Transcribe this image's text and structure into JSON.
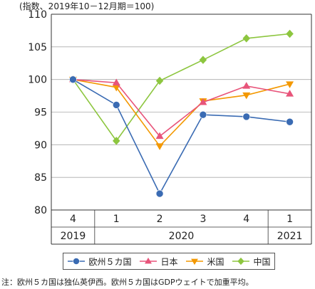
{
  "unit_note": "(指数、2019年10－12月期＝100)",
  "footnote": "注：欧州５カ国は独仏英伊西。欧州５カ国はGDPウェイトで加重平均。",
  "colors": {
    "europe": "#3a6bb3",
    "japan": "#e8547a",
    "usa": "#f39800",
    "china": "#8dc63f",
    "grid": "#aaaaaa",
    "axis": "#333333"
  },
  "chart_data": {
    "type": "line",
    "x": [
      "4",
      "1",
      "2",
      "3",
      "4",
      "1"
    ],
    "year_labels": [
      {
        "label": "2019",
        "from": 0,
        "to": 0
      },
      {
        "label": "2020",
        "from": 1,
        "to": 4
      },
      {
        "label": "2021",
        "from": 5,
        "to": 5
      }
    ],
    "ylim": [
      80,
      110
    ],
    "yticks": [
      80,
      85,
      90,
      95,
      100,
      105,
      110
    ],
    "grid": true,
    "legend_position": "bottom",
    "series": [
      {
        "name": "欧州５カ国",
        "key": "europe",
        "marker": "circle",
        "values": [
          100,
          96.1,
          82.5,
          94.6,
          94.3,
          93.5
        ]
      },
      {
        "name": "日本",
        "key": "japan",
        "marker": "triangle-up",
        "values": [
          100,
          99.5,
          91.3,
          96.5,
          99.0,
          97.8
        ]
      },
      {
        "name": "米国",
        "key": "usa",
        "marker": "triangle-down",
        "values": [
          100,
          98.8,
          89.8,
          96.7,
          97.6,
          99.3
        ]
      },
      {
        "name": "中国",
        "key": "china",
        "marker": "diamond",
        "values": [
          100,
          90.6,
          99.8,
          103.0,
          106.3,
          107.0
        ]
      }
    ]
  }
}
